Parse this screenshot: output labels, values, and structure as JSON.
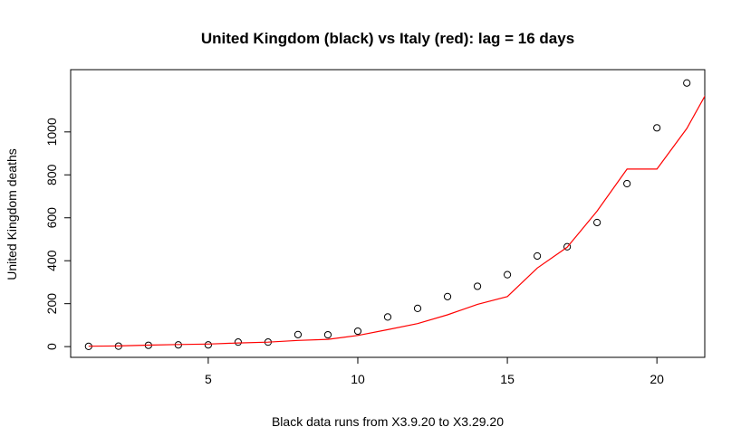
{
  "chart_data": {
    "type": "scatter",
    "title": "United Kingdom (black) vs Italy (red): lag = 16 days",
    "xlabel": "Black data runs from X3.9.20 to X3.29.20",
    "ylabel": "United Kingdom deaths",
    "xlim": [
      0.4,
      21.6
    ],
    "ylim": [
      -50,
      1290
    ],
    "x_ticks": [
      5,
      10,
      15,
      20
    ],
    "y_ticks": [
      0,
      200,
      400,
      600,
      800,
      1000
    ],
    "grid": false,
    "legend": "none",
    "series": [
      {
        "style": "points",
        "color": "#000000",
        "x": [
          1,
          2,
          3,
          4,
          5,
          6,
          7,
          8,
          9,
          10,
          11,
          12,
          13,
          14,
          15,
          16,
          17,
          18,
          19,
          20,
          21
        ],
        "y": [
          1,
          2,
          6,
          8,
          8,
          21,
          21,
          56,
          55,
          72,
          138,
          178,
          233,
          281,
          335,
          422,
          465,
          578,
          759,
          1019,
          1228
        ]
      },
      {
        "style": "line",
        "color": "#ff0000",
        "x": [
          1,
          2,
          3,
          4,
          5,
          6,
          7,
          8,
          9,
          10,
          11,
          12,
          13,
          14,
          15,
          16,
          17,
          18,
          19,
          20,
          21,
          22
        ],
        "y": [
          2,
          3,
          7,
          10,
          12,
          17,
          21,
          29,
          34,
          52,
          79,
          107,
          148,
          197,
          233,
          366,
          463,
          631,
          827,
          827,
          1016,
          1266
        ]
      }
    ]
  }
}
